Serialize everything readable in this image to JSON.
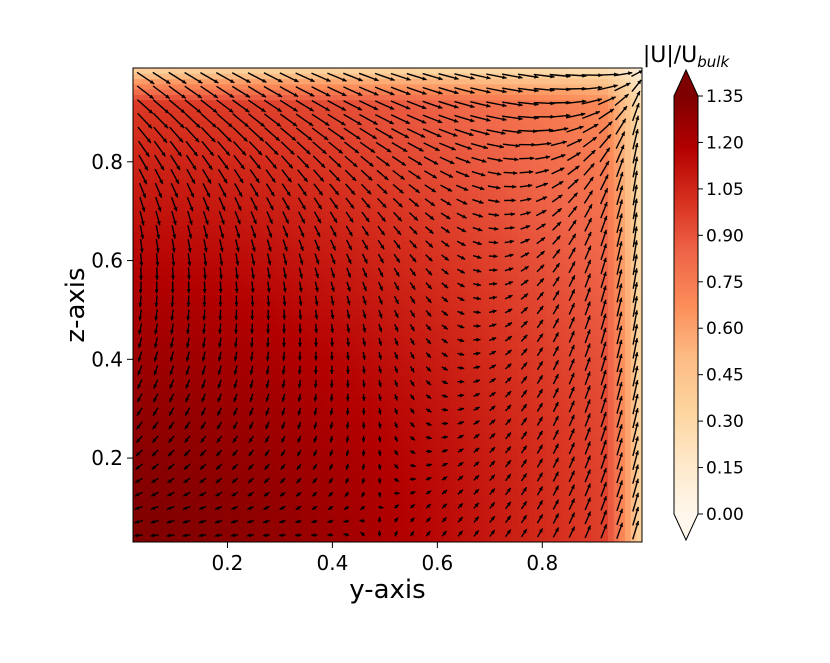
{
  "chart_data": {
    "type": "heatmap",
    "subtype": "filled-contour-with-quiver",
    "title": "",
    "xlabel": "y-axis",
    "ylabel": "z-axis",
    "xlim": [
      0.02,
      0.99
    ],
    "ylim": [
      0.03,
      0.99
    ],
    "x_ticks": [
      0.2,
      0.4,
      0.6,
      0.8
    ],
    "y_ticks": [
      0.2,
      0.4,
      0.6,
      0.8
    ],
    "x_tick_labels": [
      "0.2",
      "0.4",
      "0.6",
      "0.8"
    ],
    "y_tick_labels": [
      "0.2",
      "0.4",
      "0.6",
      "0.8"
    ],
    "colorbar": {
      "label_main": "|U|/U",
      "label_sub": "bulk",
      "min": 0.0,
      "max": 1.35,
      "levels": [
        0.0,
        0.15,
        0.3,
        0.45,
        0.6,
        0.75,
        0.9,
        1.05,
        1.2,
        1.35
      ],
      "tick_labels": [
        "0.00",
        "0.15",
        "0.30",
        "0.45",
        "0.60",
        "0.75",
        "0.90",
        "1.05",
        "1.20",
        "1.35"
      ],
      "extend": "both",
      "colormap": "OrRd",
      "colors": [
        "#fff7ec",
        "#fee8c8",
        "#fdd49e",
        "#fdbb84",
        "#fc8d59",
        "#ef6548",
        "#d7301f",
        "#b30000",
        "#7f0000"
      ]
    },
    "field": {
      "description_of_pattern": "velocity magnitude highest near lower-left corner (~1.35) decreasing toward top and right walls (~0 at walls); secondary flow vectors circulate with strongest arrows near top-right corner",
      "corner_value": 1.35,
      "wall_value": 0.0,
      "quiver_grid": [
        32,
        34
      ]
    },
    "grid": false,
    "colors": {
      "arrow": "#000000",
      "axis": "#000000",
      "background": "#ffffff"
    }
  }
}
